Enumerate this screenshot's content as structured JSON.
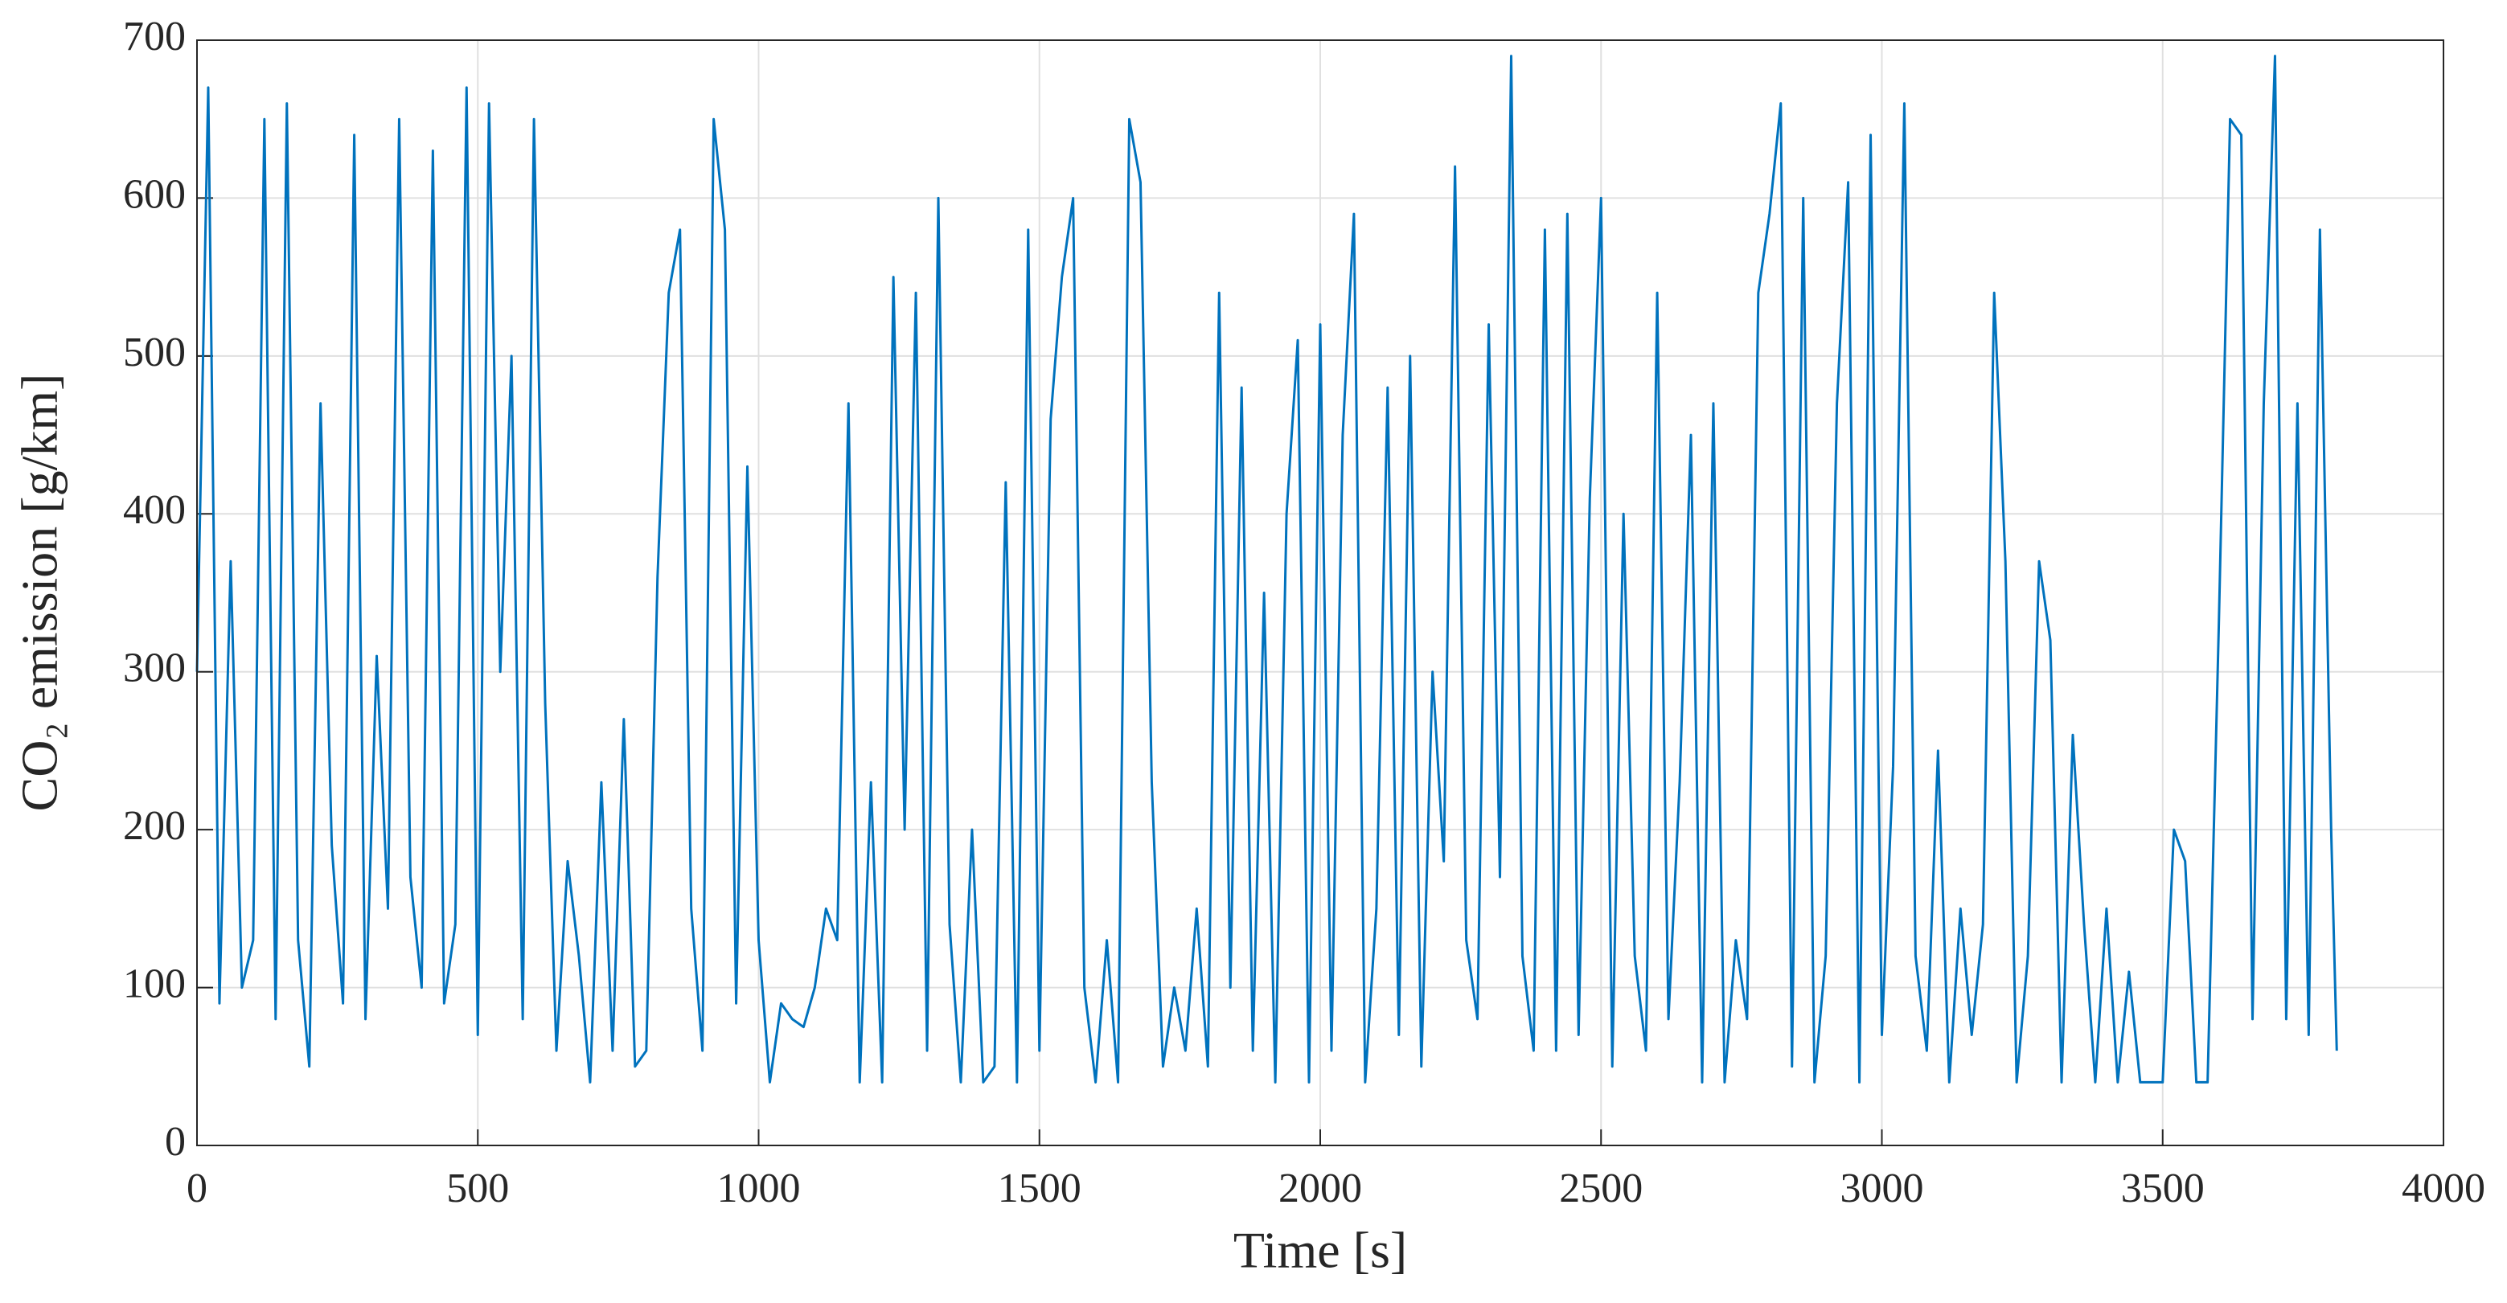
{
  "chart_data": {
    "type": "line",
    "xlabel": "Time [s]",
    "ylabel": "CO₂ emission [g/km]",
    "xlim": [
      0,
      4000
    ],
    "xticks": [
      0,
      500,
      1000,
      1500,
      2000,
      2500,
      3000,
      3500,
      4000
    ],
    "ylim": [
      0,
      700
    ],
    "yticks": [
      0,
      100,
      200,
      300,
      400,
      500,
      600,
      700
    ],
    "grid": true,
    "x": [
      0,
      20,
      40,
      60,
      80,
      100,
      120,
      140,
      160,
      180,
      200,
      220,
      240,
      260,
      280,
      300,
      320,
      340,
      360,
      380,
      400,
      420,
      440,
      460,
      480,
      500,
      520,
      540,
      560,
      580,
      600,
      620,
      640,
      660,
      680,
      700,
      720,
      740,
      760,
      780,
      800,
      820,
      840,
      860,
      880,
      900,
      920,
      940,
      960,
      980,
      1000,
      1020,
      1040,
      1060,
      1080,
      1100,
      1120,
      1140,
      1160,
      1180,
      1200,
      1220,
      1240,
      1260,
      1280,
      1300,
      1320,
      1340,
      1360,
      1380,
      1400,
      1420,
      1440,
      1460,
      1480,
      1500,
      1520,
      1540,
      1560,
      1580,
      1600,
      1620,
      1640,
      1660,
      1680,
      1700,
      1720,
      1740,
      1760,
      1780,
      1800,
      1820,
      1840,
      1860,
      1880,
      1900,
      1920,
      1940,
      1960,
      1980,
      2000,
      2020,
      2040,
      2060,
      2080,
      2100,
      2120,
      2140,
      2160,
      2180,
      2200,
      2220,
      2240,
      2260,
      2280,
      2300,
      2320,
      2340,
      2360,
      2380,
      2400,
      2420,
      2440,
      2460,
      2480,
      2500,
      2520,
      2540,
      2560,
      2580,
      2600,
      2620,
      2640,
      2660,
      2680,
      2700,
      2720,
      2740,
      2760,
      2780,
      2800,
      2820,
      2840,
      2860,
      2880,
      2900,
      2920,
      2940,
      2960,
      2980,
      3000,
      3020,
      3040,
      3060,
      3080,
      3100,
      3120,
      3140,
      3160,
      3180,
      3200,
      3220,
      3240,
      3260,
      3280,
      3300,
      3320,
      3340,
      3360,
      3380,
      3400,
      3420,
      3440,
      3460,
      3480,
      3500,
      3520,
      3540,
      3560,
      3580,
      3600,
      3620,
      3640,
      3660,
      3680,
      3700,
      3720,
      3740,
      3760,
      3780,
      3800,
      3810
    ],
    "series": [
      {
        "name": "CO₂ emission",
        "color": "#0072bd",
        "values": [
          300,
          670,
          90,
          370,
          100,
          130,
          650,
          80,
          660,
          130,
          50,
          470,
          190,
          90,
          640,
          80,
          310,
          150,
          650,
          170,
          100,
          630,
          90,
          140,
          670,
          70,
          660,
          300,
          500,
          80,
          650,
          280,
          60,
          180,
          120,
          40,
          230,
          60,
          270,
          50,
          60,
          360,
          540,
          580,
          150,
          60,
          650,
          580,
          90,
          430,
          130,
          40,
          90,
          80,
          75,
          100,
          150,
          130,
          470,
          40,
          230,
          40,
          550,
          200,
          540,
          60,
          600,
          140,
          40,
          200,
          40,
          50,
          420,
          40,
          580,
          60,
          460,
          550,
          600,
          100,
          40,
          130,
          40,
          650,
          610,
          230,
          50,
          100,
          60,
          150,
          50,
          540,
          100,
          480,
          60,
          350,
          40,
          400,
          510,
          40,
          520,
          60,
          450,
          590,
          40,
          150,
          480,
          70,
          500,
          50,
          300,
          180,
          620,
          130,
          80,
          520,
          170,
          690,
          120,
          60,
          580,
          60,
          590,
          70,
          410,
          600,
          50,
          400,
          120,
          60,
          540,
          80,
          230,
          450,
          40,
          470,
          40,
          130,
          80,
          540,
          590,
          660,
          50,
          600,
          40,
          120,
          470,
          610,
          40,
          640,
          70,
          240,
          660,
          120,
          60,
          250,
          40,
          150,
          70,
          140,
          540,
          370,
          40,
          120,
          370,
          320,
          40,
          260,
          140,
          40,
          150,
          40,
          110,
          40,
          40,
          40,
          200,
          180,
          40,
          40,
          330,
          650,
          640,
          80,
          470,
          690,
          80,
          470,
          70,
          580,
          200,
          60
        ]
      }
    ]
  }
}
